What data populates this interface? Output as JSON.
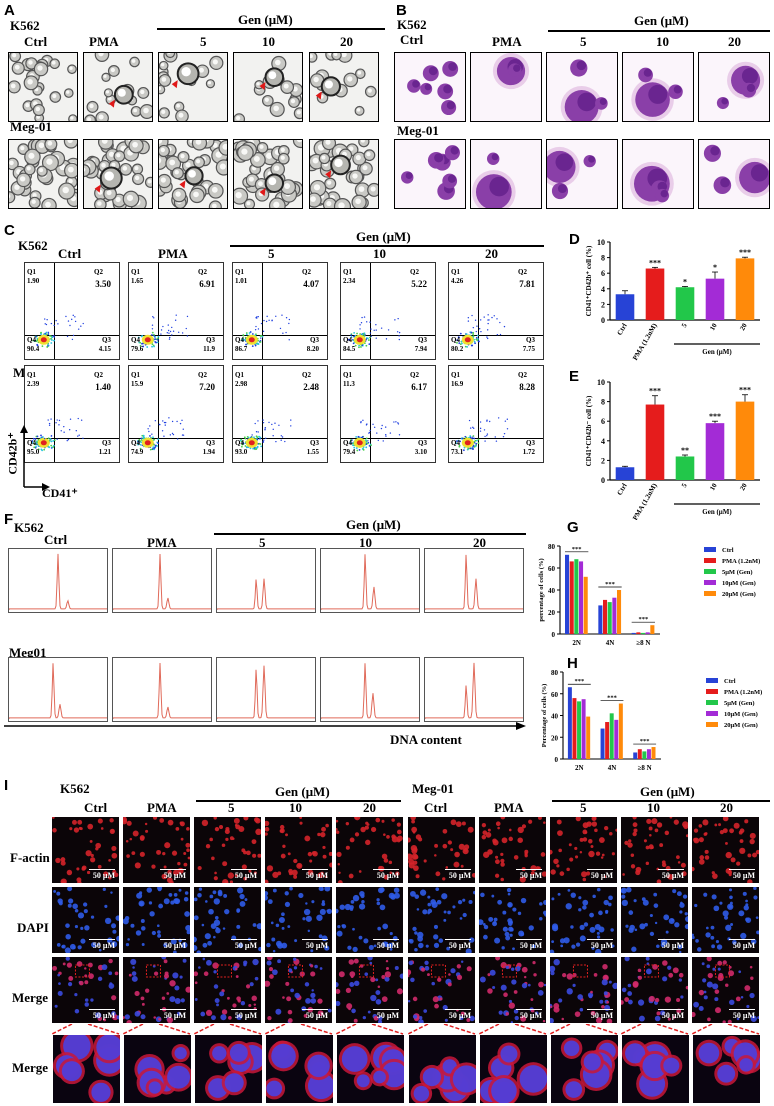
{
  "panels": {
    "A": "A",
    "B": "B",
    "C": "C",
    "D": "D",
    "E": "E",
    "F": "F",
    "G": "G",
    "H": "H",
    "I": "I"
  },
  "lines": {
    "k562": "K562",
    "meg01": "Meg-01",
    "meg01b": "Meg01",
    "ctrl": "Ctrl",
    "pma": "PMA",
    "gen": "Gen (μM)",
    "d5": "5",
    "d10": "10",
    "d20": "20"
  },
  "flow": {
    "k562": [
      {
        "q1": "Q1",
        "q1v": "1.90",
        "q2": "Q2",
        "q2v": "3.50",
        "q3": "Q3",
        "q3v": "4.15",
        "q4": "Q4",
        "q4v": "90.4"
      },
      {
        "q1": "Q1",
        "q1v": "1.65",
        "q2": "Q2",
        "q2v": "6.91",
        "q3": "Q3",
        "q3v": "11.9",
        "q4": "Q4",
        "q4v": "79.6"
      },
      {
        "q1": "Q1",
        "q1v": "1.01",
        "q2": "Q2",
        "q2v": "4.07",
        "q3": "Q3",
        "q3v": "8.20",
        "q4": "Q4",
        "q4v": "86.7"
      },
      {
        "q1": "Q1",
        "q1v": "2.34",
        "q2": "Q2",
        "q2v": "5.22",
        "q3": "Q3",
        "q3v": "7.94",
        "q4": "Q4",
        "q4v": "84.5"
      },
      {
        "q1": "Q1",
        "q1v": "4.26",
        "q2": "Q2",
        "q2v": "7.81",
        "q3": "Q3",
        "q3v": "7.75",
        "q4": "Q4",
        "q4v": "80.2"
      }
    ],
    "meg01": [
      {
        "q1": "Q1",
        "q1v": "2.39",
        "q2": "Q2",
        "q2v": "1.40",
        "q3": "Q3",
        "q3v": "1.21",
        "q4": "Q4",
        "q4v": "95.0"
      },
      {
        "q1": "Q1",
        "q1v": "15.9",
        "q2": "Q2",
        "q2v": "7.20",
        "q3": "Q3",
        "q3v": "1.94",
        "q4": "Q4",
        "q4v": "74.9"
      },
      {
        "q1": "Q1",
        "q1v": "2.98",
        "q2": "Q2",
        "q2v": "2.48",
        "q3": "Q3",
        "q3v": "1.55",
        "q4": "Q4",
        "q4v": "93.0"
      },
      {
        "q1": "Q1",
        "q1v": "11.3",
        "q2": "Q2",
        "q2v": "6.17",
        "q3": "Q3",
        "q3v": "3.10",
        "q4": "Q4",
        "q4v": "79.4"
      },
      {
        "q1": "Q1",
        "q1v": "16.9",
        "q2": "Q2",
        "q2v": "8.28",
        "q3": "Q3",
        "q3v": "1.72",
        "q4": "Q4",
        "q4v": "73.1"
      }
    ],
    "ylabel": "CD42b⁺",
    "xlabel": "CD41⁺"
  },
  "hist": {
    "xlabel": "DNA content"
  },
  "fluor": {
    "factin": "F-actin",
    "dapi": "DAPI",
    "merge": "Merge",
    "scale": "50 μM"
  },
  "chart_data": [
    {
      "id": "D",
      "type": "bar",
      "ylabel": "CD41⁺CD42b⁺ cell (%)",
      "ylim": [
        0,
        10
      ],
      "yticks": [
        0,
        2,
        4,
        6,
        8,
        10
      ],
      "categories": [
        "Ctrl",
        "PMA (1.2nM)",
        "5",
        "10",
        "20"
      ],
      "group_label": "Gen (μM)",
      "values": [
        3.3,
        6.6,
        4.2,
        5.3,
        7.9
      ],
      "errors": [
        0.45,
        0.15,
        0.1,
        0.85,
        0.15
      ],
      "sig": [
        "",
        "***",
        "*",
        "*",
        "***"
      ],
      "colors": [
        "#2743d6",
        "#e51c1c",
        "#22c74a",
        "#a32bd6",
        "#ff8a0a"
      ]
    },
    {
      "id": "E",
      "type": "bar",
      "ylabel": "CD41⁺CD42b⁻ cell (%)",
      "ylim": [
        0,
        10
      ],
      "yticks": [
        0,
        2,
        4,
        6,
        8,
        10
      ],
      "categories": [
        "Ctrl",
        "PMA (1.2nM)",
        "5",
        "10",
        "20"
      ],
      "group_label": "Gen (μM)",
      "values": [
        1.3,
        7.7,
        2.4,
        5.8,
        8.0
      ],
      "errors": [
        0.1,
        0.9,
        0.15,
        0.2,
        0.7
      ],
      "sig": [
        "",
        "***",
        "**",
        "***",
        "***"
      ],
      "colors": [
        "#2743d6",
        "#e51c1c",
        "#22c74a",
        "#a32bd6",
        "#ff8a0a"
      ]
    },
    {
      "id": "G",
      "type": "bar",
      "ylabel": "percentage of cells (%)",
      "ylim": [
        0,
        80
      ],
      "yticks": [
        0,
        20,
        40,
        60,
        80
      ],
      "categories": [
        "2N",
        "4N",
        "≥8 N"
      ],
      "series": [
        {
          "name": "Ctrl",
          "color": "#2743d6",
          "values": [
            72,
            26,
            1
          ]
        },
        {
          "name": "PMA (1.2nM)",
          "color": "#e51c1c",
          "values": [
            66,
            31,
            1.5
          ]
        },
        {
          "name": "5μM (Gen)",
          "color": "#22c74a",
          "values": [
            68,
            29,
            1
          ]
        },
        {
          "name": "10μM (Gen)",
          "color": "#a32bd6",
          "values": [
            66,
            33,
            1.5
          ]
        },
        {
          "name": "20μM (Gen)",
          "color": "#ff8a0a",
          "values": [
            52,
            40,
            8
          ]
        }
      ],
      "sig": [
        "***",
        "***",
        "***"
      ]
    },
    {
      "id": "H",
      "type": "bar",
      "ylabel": "Percentage of cells (%)",
      "ylim": [
        0,
        80
      ],
      "yticks": [
        0,
        20,
        40,
        60,
        80
      ],
      "categories": [
        "2N",
        "4N",
        "≥8 N"
      ],
      "series": [
        {
          "name": "Ctrl",
          "color": "#2743d6",
          "values": [
            66,
            28,
            6
          ]
        },
        {
          "name": "PMA (1.2nM)",
          "color": "#e51c1c",
          "values": [
            56,
            34,
            9
          ]
        },
        {
          "name": "5μM (Gen)",
          "color": "#22c74a",
          "values": [
            53,
            42,
            7
          ]
        },
        {
          "name": "10μM (Gen)",
          "color": "#a32bd6",
          "values": [
            55,
            36,
            9
          ]
        },
        {
          "name": "20μM (Gen)",
          "color": "#ff8a0a",
          "values": [
            39,
            51,
            11
          ]
        }
      ],
      "sig": [
        "***",
        "***",
        "***"
      ]
    }
  ]
}
